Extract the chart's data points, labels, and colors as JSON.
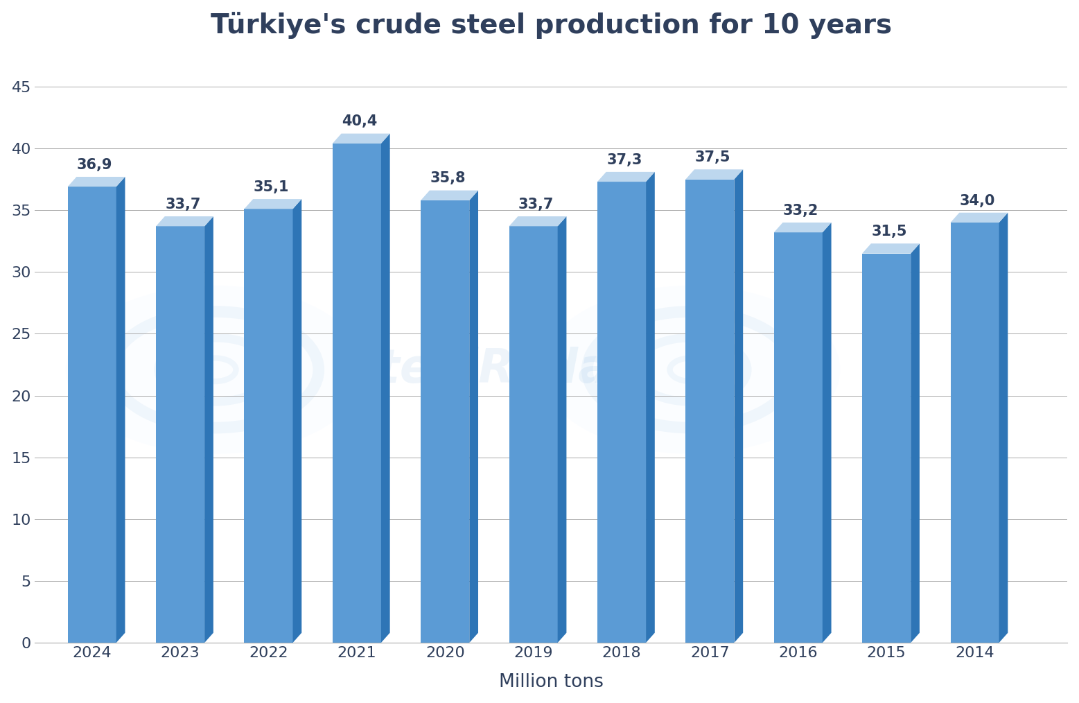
{
  "title": "Türkiye's crude steel production for 10 years",
  "years": [
    "2024",
    "2023",
    "2022",
    "2021",
    "2020",
    "2019",
    "2018",
    "2017",
    "2016",
    "2015",
    "2014"
  ],
  "values": [
    36.9,
    33.7,
    35.1,
    40.4,
    35.8,
    33.7,
    37.3,
    37.5,
    33.2,
    31.5,
    34.0
  ],
  "labels": [
    "36,9",
    "33,7",
    "35,1",
    "40,4",
    "35,8",
    "33,7",
    "37,3",
    "37,5",
    "33,2",
    "31,5",
    "34,0"
  ],
  "bar_color_face": "#5B9BD5",
  "bar_color_side": "#2E75B6",
  "bar_color_top": "#BDD7EE",
  "xlabel": "Million tons",
  "ylim": [
    0,
    47
  ],
  "yticks": [
    0,
    5,
    10,
    15,
    20,
    25,
    30,
    35,
    40,
    45
  ],
  "title_color": "#2F3F5C",
  "title_fontsize": 28,
  "label_fontsize": 15,
  "tick_fontsize": 16,
  "xlabel_fontsize": 19,
  "background_color": "#FFFFFF",
  "grid_color": "#AAAAAA"
}
